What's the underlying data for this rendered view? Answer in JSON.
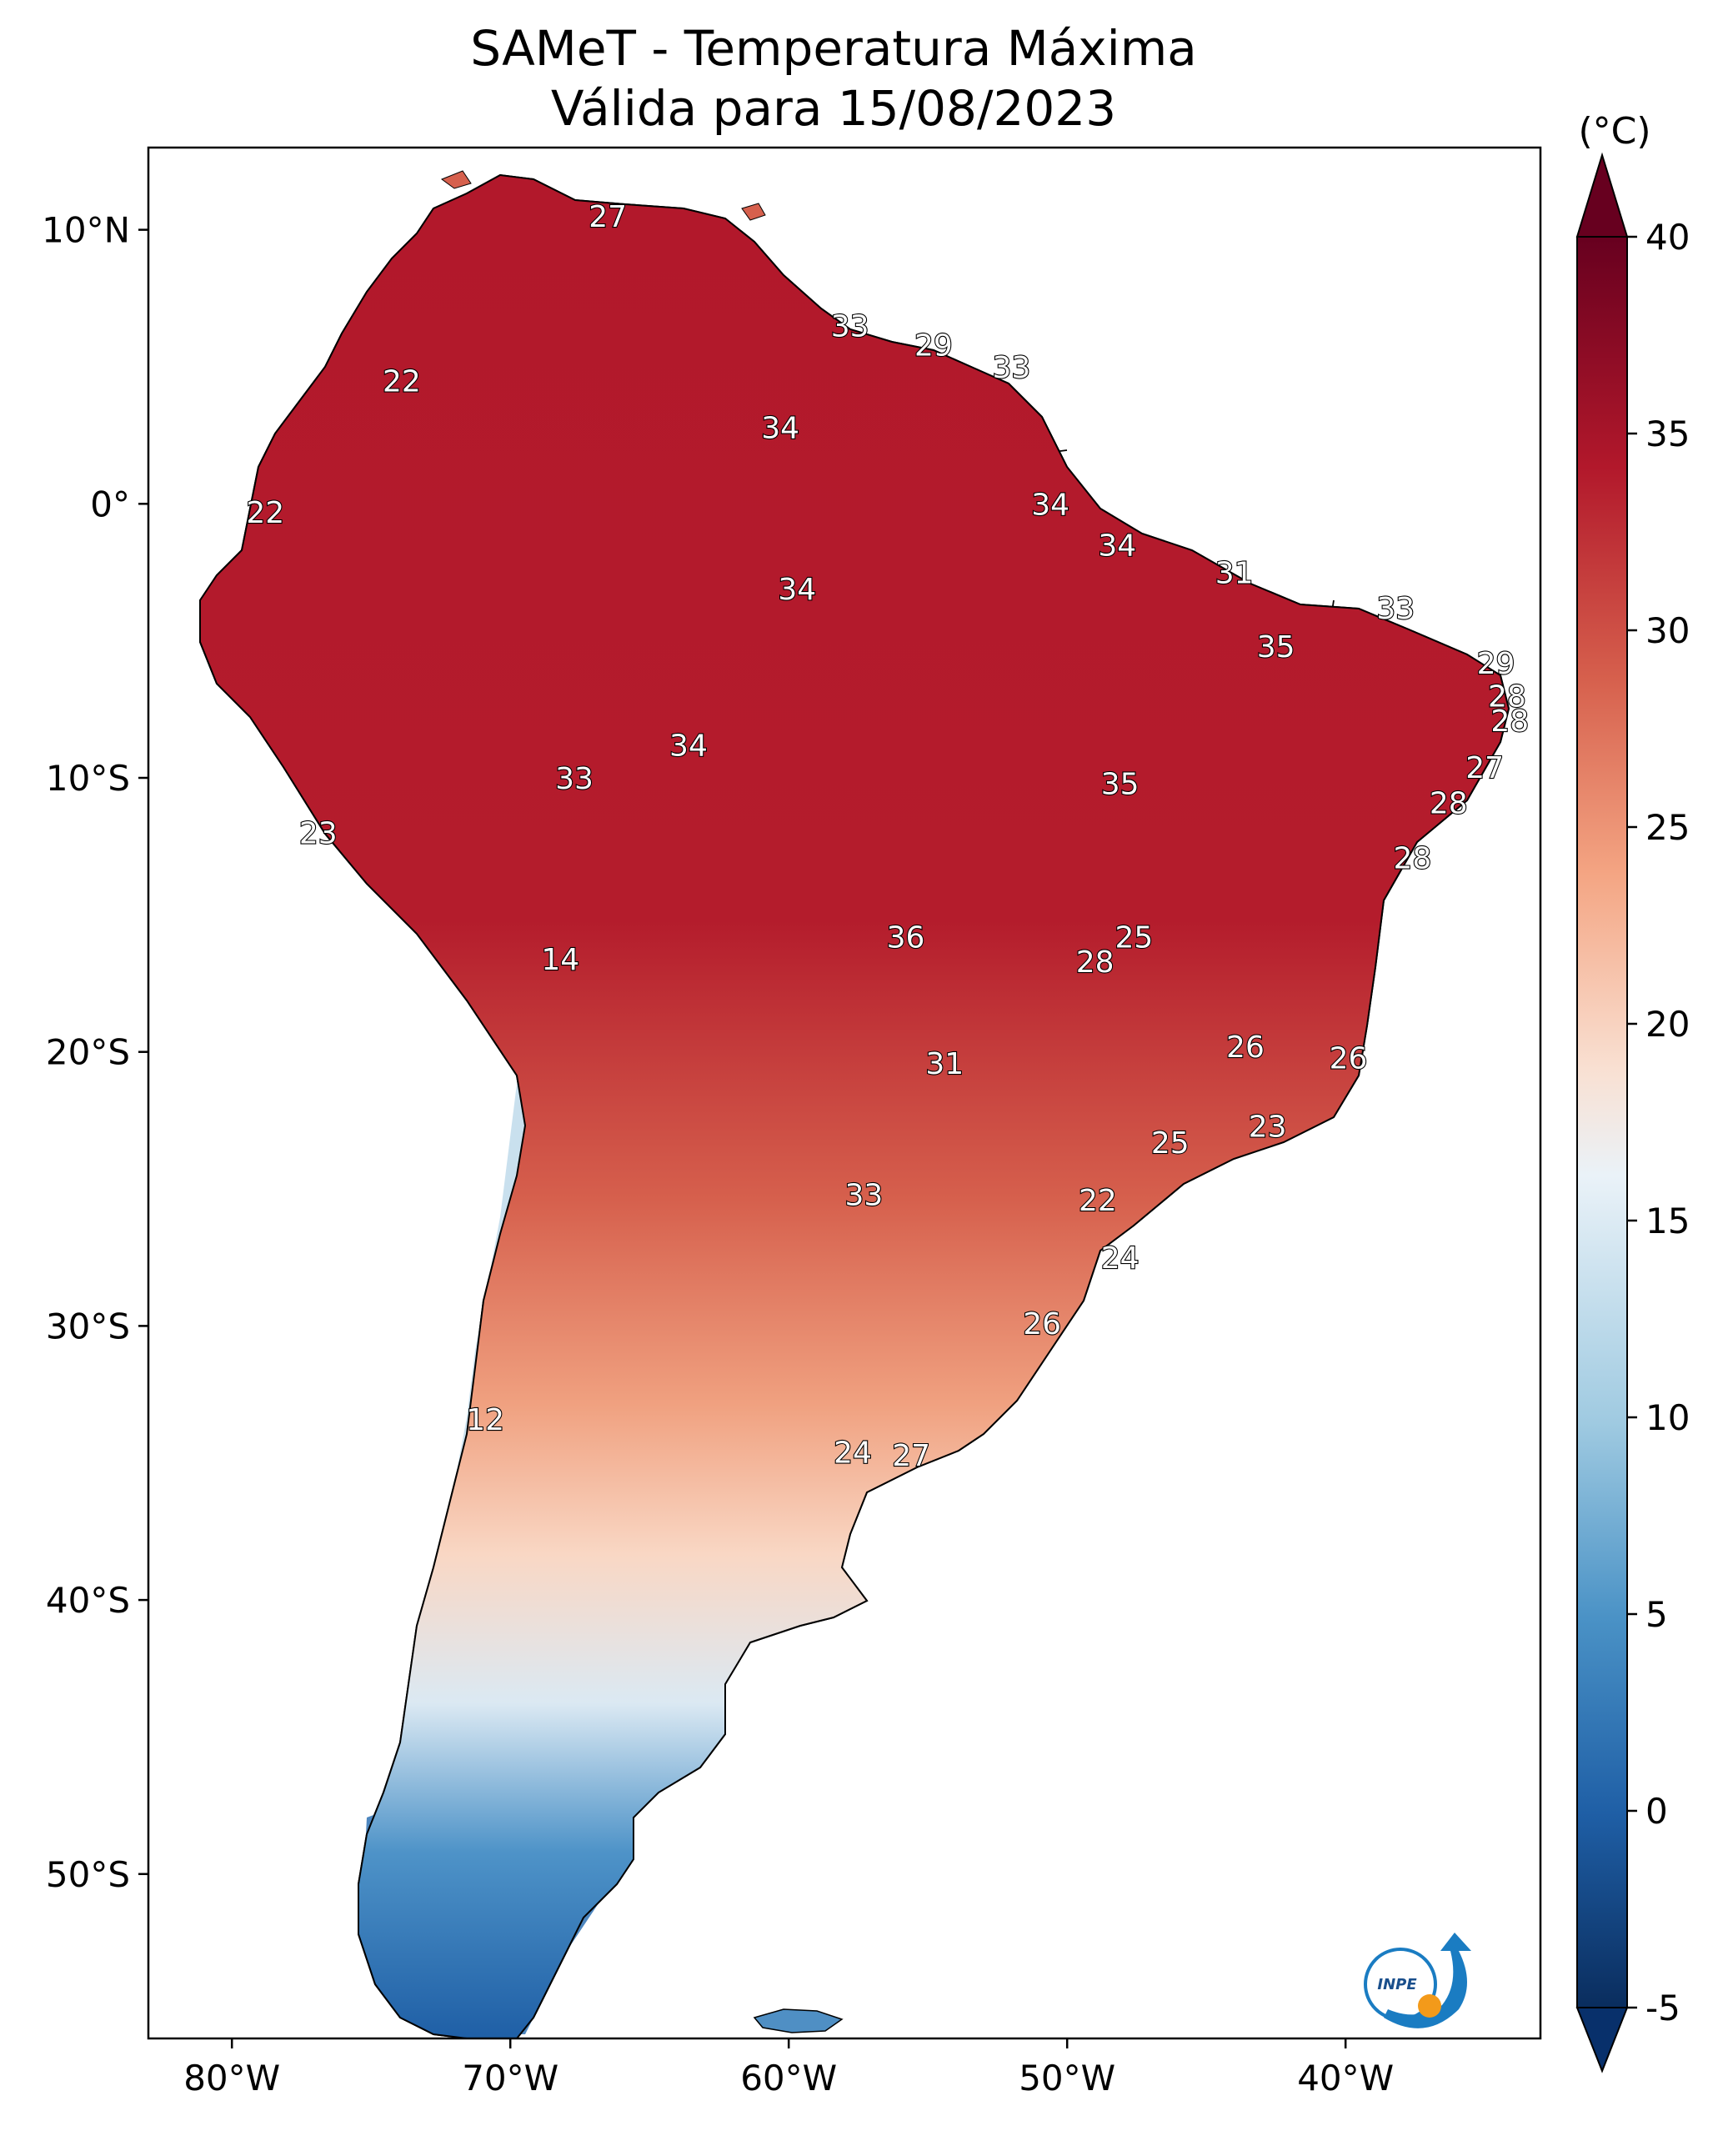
{
  "title": {
    "line1": "SAMeT - Temperatura Máxima",
    "line2": "Válida para 15/08/2023"
  },
  "colorbar": {
    "unit_label": "(°C)",
    "range": [
      -5,
      40
    ],
    "ticks": [
      "40",
      "35",
      "30",
      "25",
      "20",
      "15",
      "10",
      "5",
      "0",
      "-5"
    ],
    "tick_values": [
      40,
      35,
      30,
      25,
      20,
      15,
      10,
      5,
      0,
      -5
    ],
    "colors": [
      "#0a2d5e",
      "#1f5fa6",
      "#4a92c6",
      "#9fcae1",
      "#eaf2f8",
      "#f9e0d2",
      "#f4a583",
      "#d6604d",
      "#b2182b",
      "#67001f"
    ]
  },
  "axes": {
    "lat_labels": [
      "10°N",
      "0°",
      "10°S",
      "20°S",
      "30°S",
      "40°S",
      "50°S"
    ],
    "lat_values": [
      10,
      0,
      -10,
      -20,
      -30,
      -40,
      -50
    ],
    "lon_labels": [
      "80°W",
      "70°W",
      "60°W",
      "50°W",
      "40°W"
    ],
    "lon_values": [
      -80,
      -70,
      -60,
      -50,
      -40
    ],
    "lon_range": [
      -83,
      -33
    ],
    "lat_range": [
      -56,
      13
    ]
  },
  "temperature_labels": [
    {
      "text": "27",
      "lon": -66.5,
      "lat": 10.5
    },
    {
      "text": "33",
      "lon": -57.8,
      "lat": 6.5
    },
    {
      "text": "29",
      "lon": -54.8,
      "lat": 5.8
    },
    {
      "text": "33",
      "lon": -52.0,
      "lat": 5.0
    },
    {
      "text": "22",
      "lon": -73.9,
      "lat": 4.5
    },
    {
      "text": "34",
      "lon": -60.3,
      "lat": 2.8
    },
    {
      "text": "34",
      "lon": -50.6,
      "lat": 0.0
    },
    {
      "text": "22",
      "lon": -78.8,
      "lat": -0.3
    },
    {
      "text": "34",
      "lon": -48.2,
      "lat": -1.5
    },
    {
      "text": "31",
      "lon": -44.0,
      "lat": -2.5
    },
    {
      "text": "34",
      "lon": -59.7,
      "lat": -3.1
    },
    {
      "text": "33",
      "lon": -38.2,
      "lat": -3.8
    },
    {
      "text": "35",
      "lon": -42.5,
      "lat": -5.2
    },
    {
      "text": "29",
      "lon": -34.6,
      "lat": -5.8
    },
    {
      "text": "28",
      "lon": -34.2,
      "lat": -7.0
    },
    {
      "text": "28",
      "lon": -34.1,
      "lat": -7.9
    },
    {
      "text": "34",
      "lon": -63.6,
      "lat": -8.8
    },
    {
      "text": "27",
      "lon": -35.0,
      "lat": -9.6
    },
    {
      "text": "33",
      "lon": -67.7,
      "lat": -10.0
    },
    {
      "text": "35",
      "lon": -48.1,
      "lat": -10.2
    },
    {
      "text": "28",
      "lon": -36.3,
      "lat": -10.9
    },
    {
      "text": "23",
      "lon": -76.9,
      "lat": -12.0
    },
    {
      "text": "28",
      "lon": -37.6,
      "lat": -12.9
    },
    {
      "text": "25",
      "lon": -47.6,
      "lat": -15.8
    },
    {
      "text": "36",
      "lon": -55.8,
      "lat": -15.8
    },
    {
      "text": "14",
      "lon": -68.2,
      "lat": -16.6
    },
    {
      "text": "28",
      "lon": -49.0,
      "lat": -16.7
    },
    {
      "text": "26",
      "lon": -43.6,
      "lat": -19.8
    },
    {
      "text": "26",
      "lon": -39.9,
      "lat": -20.2
    },
    {
      "text": "31",
      "lon": -54.4,
      "lat": -20.4
    },
    {
      "text": "23",
      "lon": -42.8,
      "lat": -22.7
    },
    {
      "text": "25",
      "lon": -46.3,
      "lat": -23.3
    },
    {
      "text": "22",
      "lon": -48.9,
      "lat": -25.4
    },
    {
      "text": "33",
      "lon": -57.3,
      "lat": -25.2
    },
    {
      "text": "24",
      "lon": -48.1,
      "lat": -27.5
    },
    {
      "text": "26",
      "lon": -50.9,
      "lat": -29.9
    },
    {
      "text": "12",
      "lon": -70.9,
      "lat": -33.4
    },
    {
      "text": "24",
      "lon": -57.7,
      "lat": -34.6
    },
    {
      "text": "27",
      "lon": -55.6,
      "lat": -34.7
    }
  ]
}
